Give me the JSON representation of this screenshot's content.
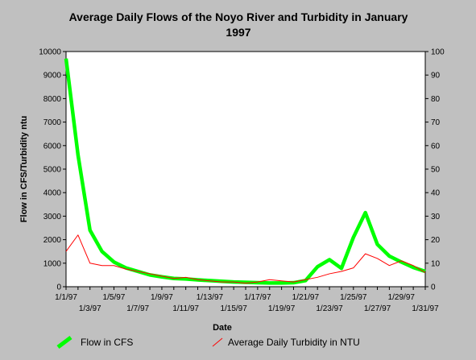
{
  "chart_data": {
    "type": "line",
    "title_lines": [
      "Average Daily Flows of the Noyo River and Turbidity in January",
      "1997"
    ],
    "xlabel": "Date",
    "ylabel": "Flow in CFS/Turbidity ntu",
    "y_left": {
      "min": 0,
      "max": 10000,
      "ticks": [
        "0",
        "1000",
        "2000",
        "3000",
        "4000",
        "5000",
        "6000",
        "7000",
        "8000",
        "9000",
        "10000"
      ]
    },
    "y_right": {
      "min": 0,
      "max": 100,
      "ticks": [
        "0",
        "10",
        "20",
        "30",
        "40",
        "50",
        "60",
        "70",
        "80",
        "90",
        "100"
      ]
    },
    "x": [
      "1/1/97",
      "1/2/97",
      "1/3/97",
      "1/4/97",
      "1/5/97",
      "1/6/97",
      "1/7/97",
      "1/8/97",
      "1/9/97",
      "1/10/97",
      "1/11/97",
      "1/12/97",
      "1/13/97",
      "1/14/97",
      "1/15/97",
      "1/16/97",
      "1/17/97",
      "1/18/97",
      "1/19/97",
      "1/20/97",
      "1/21/97",
      "1/22/97",
      "1/23/97",
      "1/24/97",
      "1/25/97",
      "1/26/97",
      "1/27/97",
      "1/28/97",
      "1/29/97",
      "1/30/97",
      "1/31/97"
    ],
    "x_tick_labels": [
      "1/1/97",
      "1/3/97",
      "1/5/97",
      "1/7/97",
      "1/9/97",
      "1/11/97",
      "1/13/97",
      "1/15/97",
      "1/17/97",
      "1/19/97",
      "1/21/97",
      "1/23/97",
      "1/25/97",
      "1/27/97",
      "1/29/97",
      "1/31/97"
    ],
    "series": [
      {
        "name": "Flow in CFS",
        "axis": "left",
        "color": "#00ff00",
        "values": [
          9700,
          5600,
          2400,
          1500,
          1050,
          800,
          650,
          500,
          420,
          350,
          330,
          290,
          260,
          230,
          200,
          190,
          170,
          160,
          160,
          170,
          260,
          850,
          1150,
          780,
          2100,
          3150,
          1800,
          1300,
          1050,
          820,
          650
        ]
      },
      {
        "name": "Average Daily Turbidity in NTU",
        "axis": "right",
        "color": "#ff0000",
        "values": [
          15,
          22,
          10,
          9,
          9,
          7.5,
          6.5,
          5.5,
          4.5,
          3.5,
          4,
          3,
          2.5,
          2,
          2,
          1.5,
          2,
          3,
          2.5,
          2,
          3,
          4,
          5.5,
          6.5,
          8,
          14,
          12,
          9,
          11,
          9,
          6
        ]
      }
    ],
    "grid": false,
    "legend_position": "bottom"
  }
}
